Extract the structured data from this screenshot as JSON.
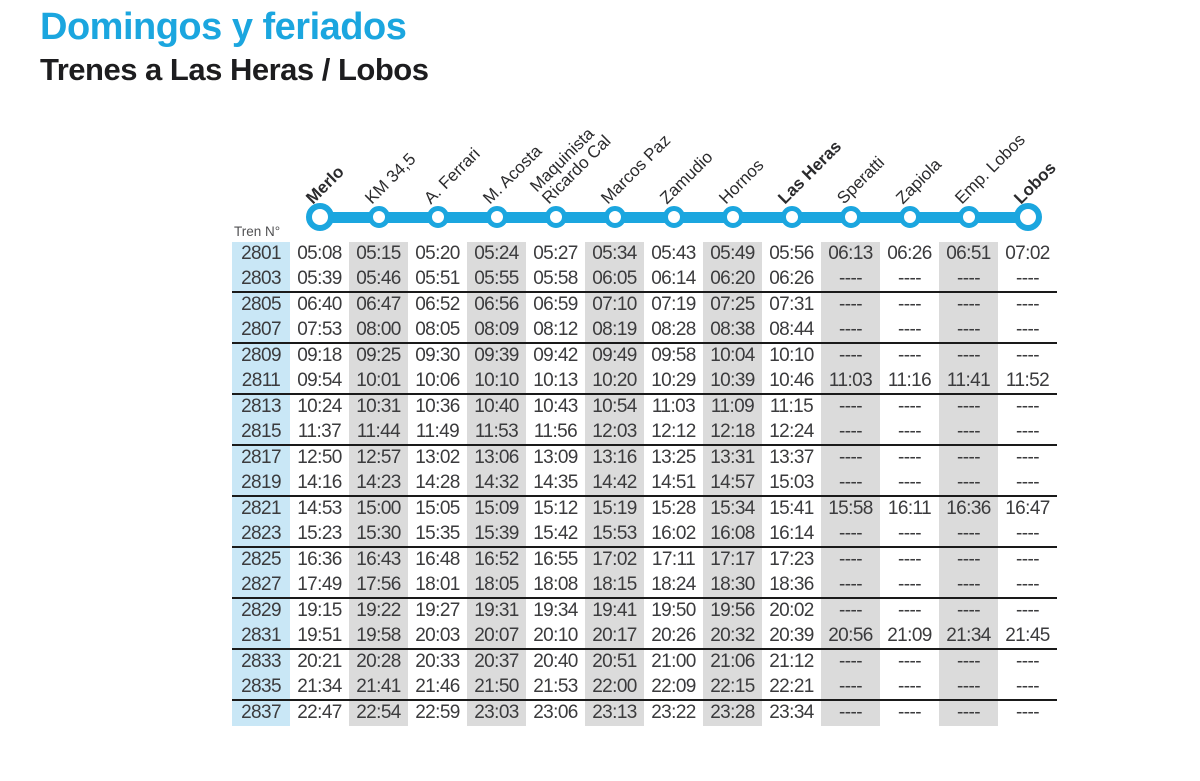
{
  "header": {
    "title": "Domingos y feriados",
    "subtitle": "Trenes a Las Heras / Lobos"
  },
  "table": {
    "train_col_label": "Tren N°",
    "stations": [
      {
        "name": "Merlo",
        "lines": [
          "Merlo"
        ],
        "bold": true,
        "terminal": true,
        "shaded": false
      },
      {
        "name": "KM 34,5",
        "lines": [
          "KM 34,5"
        ],
        "bold": false,
        "terminal": false,
        "shaded": true
      },
      {
        "name": "A. Ferrari",
        "lines": [
          "A. Ferrari"
        ],
        "bold": false,
        "terminal": false,
        "shaded": false
      },
      {
        "name": "M. Acosta",
        "lines": [
          "M. Acosta"
        ],
        "bold": false,
        "terminal": false,
        "shaded": true
      },
      {
        "name": "Maquinista Ricardo Cal",
        "lines": [
          "Maquinista",
          "Ricardo Cal"
        ],
        "bold": false,
        "terminal": false,
        "shaded": false
      },
      {
        "name": "Marcos Paz",
        "lines": [
          "Marcos Paz"
        ],
        "bold": false,
        "terminal": false,
        "shaded": true
      },
      {
        "name": "Zamudio",
        "lines": [
          "Zamudio"
        ],
        "bold": false,
        "terminal": false,
        "shaded": false
      },
      {
        "name": "Hornos",
        "lines": [
          "Hornos"
        ],
        "bold": false,
        "terminal": false,
        "shaded": true
      },
      {
        "name": "Las Heras",
        "lines": [
          "Las Heras"
        ],
        "bold": true,
        "terminal": false,
        "shaded": false
      },
      {
        "name": "Speratti",
        "lines": [
          "Speratti"
        ],
        "bold": false,
        "terminal": false,
        "shaded": true
      },
      {
        "name": "Zapiola",
        "lines": [
          "Zapiola"
        ],
        "bold": false,
        "terminal": false,
        "shaded": false
      },
      {
        "name": "Emp. Lobos",
        "lines": [
          "Emp. Lobos"
        ],
        "bold": false,
        "terminal": false,
        "shaded": true
      },
      {
        "name": "Lobos",
        "lines": [
          "Lobos"
        ],
        "bold": true,
        "terminal": true,
        "shaded": false
      }
    ],
    "rows": [
      {
        "train": "2801",
        "times": [
          "05:08",
          "05:15",
          "05:20",
          "05:24",
          "05:27",
          "05:34",
          "05:43",
          "05:49",
          "05:56",
          "06:13",
          "06:26",
          "06:51",
          "07:02"
        ]
      },
      {
        "train": "2803",
        "times": [
          "05:39",
          "05:46",
          "05:51",
          "05:55",
          "05:58",
          "06:05",
          "06:14",
          "06:20",
          "06:26",
          "----",
          "----",
          "----",
          "----"
        ]
      },
      {
        "train": "2805",
        "times": [
          "06:40",
          "06:47",
          "06:52",
          "06:56",
          "06:59",
          "07:10",
          "07:19",
          "07:25",
          "07:31",
          "----",
          "----",
          "----",
          "----"
        ]
      },
      {
        "train": "2807",
        "times": [
          "07:53",
          "08:00",
          "08:05",
          "08:09",
          "08:12",
          "08:19",
          "08:28",
          "08:38",
          "08:44",
          "----",
          "----",
          "----",
          "----"
        ]
      },
      {
        "train": "2809",
        "times": [
          "09:18",
          "09:25",
          "09:30",
          "09:39",
          "09:42",
          "09:49",
          "09:58",
          "10:04",
          "10:10",
          "----",
          "----",
          "----",
          "----"
        ]
      },
      {
        "train": "2811",
        "times": [
          "09:54",
          "10:01",
          "10:06",
          "10:10",
          "10:13",
          "10:20",
          "10:29",
          "10:39",
          "10:46",
          "11:03",
          "11:16",
          "11:41",
          "11:52"
        ]
      },
      {
        "train": "2813",
        "times": [
          "10:24",
          "10:31",
          "10:36",
          "10:40",
          "10:43",
          "10:54",
          "11:03",
          "11:09",
          "11:15",
          "----",
          "----",
          "----",
          "----"
        ]
      },
      {
        "train": "2815",
        "times": [
          "11:37",
          "11:44",
          "11:49",
          "11:53",
          "11:56",
          "12:03",
          "12:12",
          "12:18",
          "12:24",
          "----",
          "----",
          "----",
          "----"
        ]
      },
      {
        "train": "2817",
        "times": [
          "12:50",
          "12:57",
          "13:02",
          "13:06",
          "13:09",
          "13:16",
          "13:25",
          "13:31",
          "13:37",
          "----",
          "----",
          "----",
          "----"
        ]
      },
      {
        "train": "2819",
        "times": [
          "14:16",
          "14:23",
          "14:28",
          "14:32",
          "14:35",
          "14:42",
          "14:51",
          "14:57",
          "15:03",
          "----",
          "----",
          "----",
          "----"
        ]
      },
      {
        "train": "2821",
        "times": [
          "14:53",
          "15:00",
          "15:05",
          "15:09",
          "15:12",
          "15:19",
          "15:28",
          "15:34",
          "15:41",
          "15:58",
          "16:11",
          "16:36",
          "16:47"
        ]
      },
      {
        "train": "2823",
        "times": [
          "15:23",
          "15:30",
          "15:35",
          "15:39",
          "15:42",
          "15:53",
          "16:02",
          "16:08",
          "16:14",
          "----",
          "----",
          "----",
          "----"
        ]
      },
      {
        "train": "2825",
        "times": [
          "16:36",
          "16:43",
          "16:48",
          "16:52",
          "16:55",
          "17:02",
          "17:11",
          "17:17",
          "17:23",
          "----",
          "----",
          "----",
          "----"
        ]
      },
      {
        "train": "2827",
        "times": [
          "17:49",
          "17:56",
          "18:01",
          "18:05",
          "18:08",
          "18:15",
          "18:24",
          "18:30",
          "18:36",
          "----",
          "----",
          "----",
          "----"
        ]
      },
      {
        "train": "2829",
        "times": [
          "19:15",
          "19:22",
          "19:27",
          "19:31",
          "19:34",
          "19:41",
          "19:50",
          "19:56",
          "20:02",
          "----",
          "----",
          "----",
          "----"
        ]
      },
      {
        "train": "2831",
        "times": [
          "19:51",
          "19:58",
          "20:03",
          "20:07",
          "20:10",
          "20:17",
          "20:26",
          "20:32",
          "20:39",
          "20:56",
          "21:09",
          "21:34",
          "21:45"
        ]
      },
      {
        "train": "2833",
        "times": [
          "20:21",
          "20:28",
          "20:33",
          "20:37",
          "20:40",
          "20:51",
          "21:00",
          "21:06",
          "21:12",
          "----",
          "----",
          "----",
          "----"
        ]
      },
      {
        "train": "2835",
        "times": [
          "21:34",
          "21:41",
          "21:46",
          "21:50",
          "21:53",
          "22:00",
          "22:09",
          "22:15",
          "22:21",
          "----",
          "----",
          "----",
          "----"
        ]
      },
      {
        "train": "2837",
        "times": [
          "22:47",
          "22:54",
          "22:59",
          "23:03",
          "23:06",
          "23:13",
          "23:22",
          "23:28",
          "23:34",
          "----",
          "----",
          "----",
          "----"
        ]
      }
    ]
  },
  "colors": {
    "accent": "#1BA6DF",
    "shade": "#DBDBDB",
    "train_col": "#C9E7F6",
    "separator": "#1A1A1A",
    "text": "#3B3B3D"
  }
}
